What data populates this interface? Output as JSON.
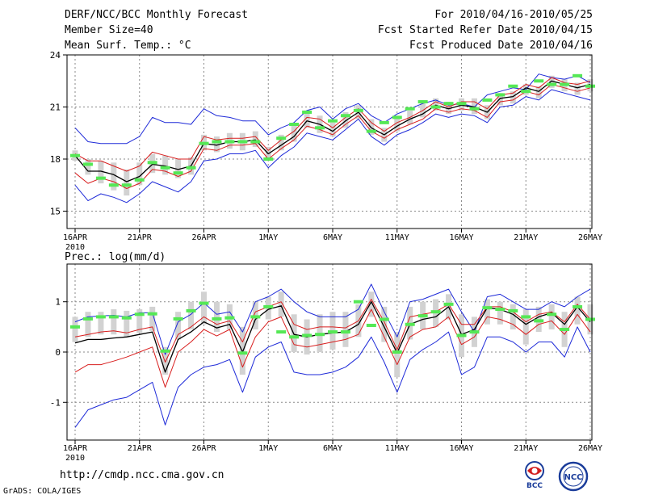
{
  "header": {
    "title": "DERF/NCC/BCC Monthly Forecast",
    "member_size": "Member Size=40",
    "variable": "Mean Surf. Temp.: °C",
    "period": "For 2010/04/16-2010/05/25",
    "refer_date": "Fcst Started Refer Date 2010/04/15",
    "produced_date": "Fcst Produced Date 2010/04/16"
  },
  "footer": {
    "url": "http://cmdp.ncc.cma.gov.cn",
    "credit": "GrADS: COLA/IGES",
    "logo_bcc": "BCC",
    "logo_ncc": "NCC"
  },
  "colors": {
    "mean": "#000000",
    "spread": "#d81e1e",
    "extreme": "#1e2ad8",
    "observed": "#55e855",
    "box": "#d2d2d2",
    "grid": "#8a8a8a"
  },
  "chart_data": [
    {
      "type": "line",
      "title": "Mean Surf. Temp.: °C",
      "x_start_day": 16,
      "x_ticks": [
        "16APR\n2010",
        "21APR",
        "26APR",
        "1MAY",
        "6MAY",
        "11MAY",
        "16MAY",
        "21MAY",
        "26MAY"
      ],
      "ylim": [
        14,
        24
      ],
      "y_ticks": [
        "15",
        "18",
        "21",
        "24"
      ],
      "y_tick_values": [
        15,
        18,
        21,
        24
      ],
      "series": [
        {
          "name": "max",
          "values": [
            19.8,
            19.0,
            18.9,
            18.9,
            18.9,
            19.3,
            20.4,
            20.1,
            20.1,
            20.0,
            20.9,
            20.5,
            20.4,
            20.2,
            20.2,
            19.4,
            19.8,
            20.1,
            20.8,
            21.0,
            20.3,
            20.9,
            21.2,
            20.5,
            20.1,
            20.6,
            20.9,
            21.2,
            21.4,
            21.1,
            21.2,
            21.0,
            21.7,
            21.9,
            22.1,
            22.0,
            22.9,
            22.7,
            22.6,
            22.8,
            22.4
          ]
        },
        {
          "name": "upper",
          "values": [
            18.3,
            17.9,
            17.9,
            17.6,
            17.3,
            17.6,
            18.4,
            18.2,
            18.0,
            18.0,
            19.3,
            19.1,
            19.2,
            19.2,
            19.3,
            18.5,
            19.1,
            19.6,
            20.4,
            20.3,
            19.8,
            20.4,
            20.9,
            20.1,
            19.6,
            20.1,
            20.4,
            20.8,
            21.3,
            21.0,
            21.3,
            21.3,
            20.9,
            21.7,
            21.8,
            22.3,
            22.1,
            22.7,
            22.4,
            22.3,
            22.5
          ]
        },
        {
          "name": "mean",
          "values": [
            18.2,
            17.3,
            17.3,
            17.1,
            16.7,
            17.0,
            17.7,
            17.6,
            17.4,
            17.6,
            18.9,
            18.8,
            19.0,
            19.0,
            19.1,
            18.3,
            18.8,
            19.3,
            20.2,
            20.0,
            19.6,
            20.2,
            20.7,
            19.8,
            19.4,
            19.9,
            20.3,
            20.6,
            21.1,
            20.9,
            21.1,
            21.0,
            20.7,
            21.5,
            21.6,
            22.1,
            21.9,
            22.5,
            22.3,
            22.1,
            22.3
          ]
        },
        {
          "name": "lower",
          "values": [
            17.2,
            16.6,
            16.9,
            16.7,
            16.3,
            16.6,
            17.4,
            17.3,
            17.0,
            17.3,
            18.6,
            18.5,
            18.8,
            18.8,
            18.9,
            18.0,
            18.6,
            19.1,
            19.9,
            19.7,
            19.4,
            20.0,
            20.5,
            19.6,
            19.2,
            19.7,
            20.0,
            20.3,
            20.9,
            20.7,
            20.9,
            20.8,
            20.4,
            21.3,
            21.4,
            21.9,
            21.7,
            22.3,
            22.1,
            21.9,
            22.1
          ]
        },
        {
          "name": "min",
          "values": [
            16.5,
            15.6,
            16.0,
            15.8,
            15.5,
            16.0,
            16.7,
            16.4,
            16.1,
            16.7,
            17.9,
            18.0,
            18.3,
            18.3,
            18.5,
            17.5,
            18.2,
            18.7,
            19.5,
            19.3,
            19.1,
            19.7,
            20.3,
            19.3,
            18.8,
            19.4,
            19.7,
            20.1,
            20.6,
            20.4,
            20.6,
            20.5,
            20.1,
            21.0,
            21.1,
            21.6,
            21.4,
            22.0,
            21.8,
            21.6,
            21.4
          ]
        },
        {
          "name": "box_high",
          "values": [
            18.5,
            18.0,
            17.9,
            17.8,
            17.4,
            17.8,
            18.3,
            18.2,
            18.0,
            18.1,
            19.4,
            19.3,
            19.5,
            19.5,
            19.6,
            18.7,
            19.4,
            20.0,
            20.8,
            20.5,
            20.1,
            20.7,
            21.1,
            20.3,
            19.8,
            20.5,
            20.8,
            21.2,
            21.5,
            21.3,
            21.5,
            21.5,
            21.1,
            21.8,
            21.9,
            22.3,
            22.2,
            22.8,
            22.6,
            22.4,
            22.6
          ]
        },
        {
          "name": "box_low",
          "values": [
            17.9,
            17.1,
            16.6,
            16.2,
            15.9,
            16.5,
            17.2,
            17.1,
            16.9,
            17.1,
            18.5,
            18.4,
            18.6,
            18.5,
            18.7,
            17.9,
            18.5,
            19.0,
            19.8,
            19.5,
            19.3,
            19.8,
            20.3,
            19.4,
            19.0,
            19.6,
            20.0,
            20.4,
            20.8,
            20.6,
            20.8,
            20.6,
            20.3,
            21.1,
            21.2,
            21.7,
            21.5,
            22.1,
            21.9,
            21.7,
            21.9
          ]
        },
        {
          "name": "observed",
          "values": [
            18.2,
            17.7,
            16.9,
            16.5,
            16.5,
            16.8,
            17.8,
            17.5,
            17.2,
            17.5,
            18.9,
            19.0,
            19.0,
            19.0,
            19.0,
            18.0,
            19.2,
            20.0,
            20.7,
            19.8,
            20.2,
            20.5,
            20.8,
            19.6,
            20.1,
            20.4,
            20.9,
            21.3,
            21.0,
            21.2,
            21.2,
            20.9,
            21.4,
            21.7,
            22.2,
            21.9,
            22.5,
            22.3,
            22.3,
            22.8,
            22.2
          ]
        }
      ]
    },
    {
      "type": "line",
      "title": "Prec.: log(mm/d)",
      "x_start_day": 16,
      "x_ticks": [
        "16APR\n2010",
        "21APR",
        "26APR",
        "1MAY",
        "6MAY",
        "11MAY",
        "16MAY",
        "21MAY",
        "26MAY"
      ],
      "ylim": [
        -1.75,
        1.75
      ],
      "y_ticks": [
        "-1",
        "0",
        "1"
      ],
      "y_tick_values": [
        -1,
        0,
        1
      ],
      "series": [
        {
          "name": "max",
          "values": [
            0.6,
            0.7,
            0.72,
            0.73,
            0.7,
            0.78,
            0.78,
            -0.05,
            0.6,
            0.75,
            0.98,
            0.75,
            0.8,
            0.4,
            1.0,
            1.1,
            1.25,
            1.0,
            0.8,
            0.7,
            0.7,
            0.7,
            0.85,
            1.35,
            0.8,
            0.3,
            1.0,
            1.05,
            1.15,
            1.25,
            0.8,
            0.4,
            1.1,
            1.15,
            1.0,
            0.85,
            0.85,
            1.0,
            0.9,
            1.1,
            1.25
          ]
        },
        {
          "name": "upper",
          "values": [
            0.3,
            0.35,
            0.4,
            0.42,
            0.38,
            0.45,
            0.5,
            -0.2,
            0.35,
            0.5,
            0.7,
            0.55,
            0.62,
            0.2,
            0.8,
            0.9,
            1.0,
            0.55,
            0.45,
            0.5,
            0.5,
            0.48,
            0.62,
            1.05,
            0.6,
            0.05,
            0.7,
            0.75,
            0.8,
            0.95,
            0.55,
            0.55,
            0.9,
            0.9,
            0.8,
            0.6,
            0.75,
            0.8,
            0.6,
            0.95,
            0.65
          ]
        },
        {
          "name": "mean",
          "values": [
            0.18,
            0.25,
            0.25,
            0.28,
            0.3,
            0.35,
            0.4,
            -0.4,
            0.25,
            0.4,
            0.6,
            0.48,
            0.55,
            0.0,
            0.65,
            0.85,
            0.92,
            0.35,
            0.3,
            0.35,
            0.38,
            0.4,
            0.55,
            1.0,
            0.5,
            -0.02,
            0.55,
            0.65,
            0.7,
            0.9,
            0.35,
            0.45,
            0.88,
            0.85,
            0.75,
            0.55,
            0.7,
            0.78,
            0.55,
            0.9,
            0.6
          ]
        },
        {
          "name": "lower",
          "values": [
            -0.4,
            -0.25,
            -0.25,
            -0.18,
            -0.1,
            0.0,
            0.1,
            -0.7,
            0.0,
            0.2,
            0.45,
            0.32,
            0.45,
            -0.3,
            0.3,
            0.6,
            0.7,
            0.15,
            0.1,
            0.15,
            0.2,
            0.25,
            0.35,
            0.85,
            0.3,
            -0.25,
            0.3,
            0.45,
            0.5,
            0.7,
            0.15,
            0.3,
            0.7,
            0.65,
            0.55,
            0.35,
            0.55,
            0.62,
            0.35,
            0.75,
            0.4
          ]
        },
        {
          "name": "min",
          "values": [
            -1.5,
            -1.15,
            -1.05,
            -0.95,
            -0.9,
            -0.75,
            -0.6,
            -1.45,
            -0.7,
            -0.45,
            -0.3,
            -0.25,
            -0.15,
            -0.8,
            -0.1,
            0.1,
            0.2,
            -0.4,
            -0.45,
            -0.45,
            -0.4,
            -0.3,
            -0.1,
            0.3,
            -0.2,
            -0.8,
            -0.15,
            0.05,
            0.2,
            0.4,
            -0.45,
            -0.3,
            0.3,
            0.3,
            0.2,
            0.0,
            0.2,
            0.2,
            -0.1,
            0.5,
            0.0
          ]
        },
        {
          "name": "box_high",
          "values": [
            0.7,
            0.8,
            0.8,
            0.85,
            0.82,
            0.85,
            0.9,
            0.1,
            0.8,
            1.0,
            1.2,
            1.0,
            0.95,
            0.5,
            1.0,
            1.1,
            1.2,
            0.75,
            0.65,
            0.75,
            0.8,
            0.8,
            0.95,
            1.2,
            0.9,
            0.4,
            0.9,
            1.0,
            1.05,
            1.15,
            0.75,
            0.7,
            1.05,
            1.0,
            0.95,
            0.85,
            0.9,
            0.95,
            0.8,
            1.1,
            0.95
          ]
        },
        {
          "name": "box_low",
          "values": [
            0.2,
            0.3,
            0.35,
            0.35,
            0.3,
            0.38,
            0.42,
            -0.45,
            0.25,
            0.45,
            0.55,
            0.4,
            0.45,
            -0.45,
            0.45,
            0.65,
            0.7,
            0.0,
            -0.05,
            0.0,
            0.05,
            0.1,
            0.3,
            0.7,
            0.2,
            -0.5,
            0.25,
            0.45,
            0.5,
            0.65,
            -0.1,
            0.1,
            0.55,
            0.55,
            0.45,
            0.15,
            0.4,
            0.45,
            0.1,
            0.55,
            0.35
          ]
        },
        {
          "name": "observed",
          "values": [
            0.5,
            0.66,
            0.7,
            0.7,
            0.68,
            0.75,
            0.76,
            0.02,
            0.66,
            0.82,
            0.97,
            0.66,
            0.68,
            -0.02,
            0.7,
            0.9,
            0.4,
            0.3,
            0.33,
            0.35,
            0.4,
            0.4,
            1.0,
            0.53,
            0.65,
            0.0,
            0.55,
            0.72,
            0.8,
            0.95,
            0.33,
            0.4,
            0.88,
            0.85,
            0.82,
            0.7,
            0.62,
            0.75,
            0.45,
            0.9,
            0.65
          ]
        }
      ]
    }
  ]
}
